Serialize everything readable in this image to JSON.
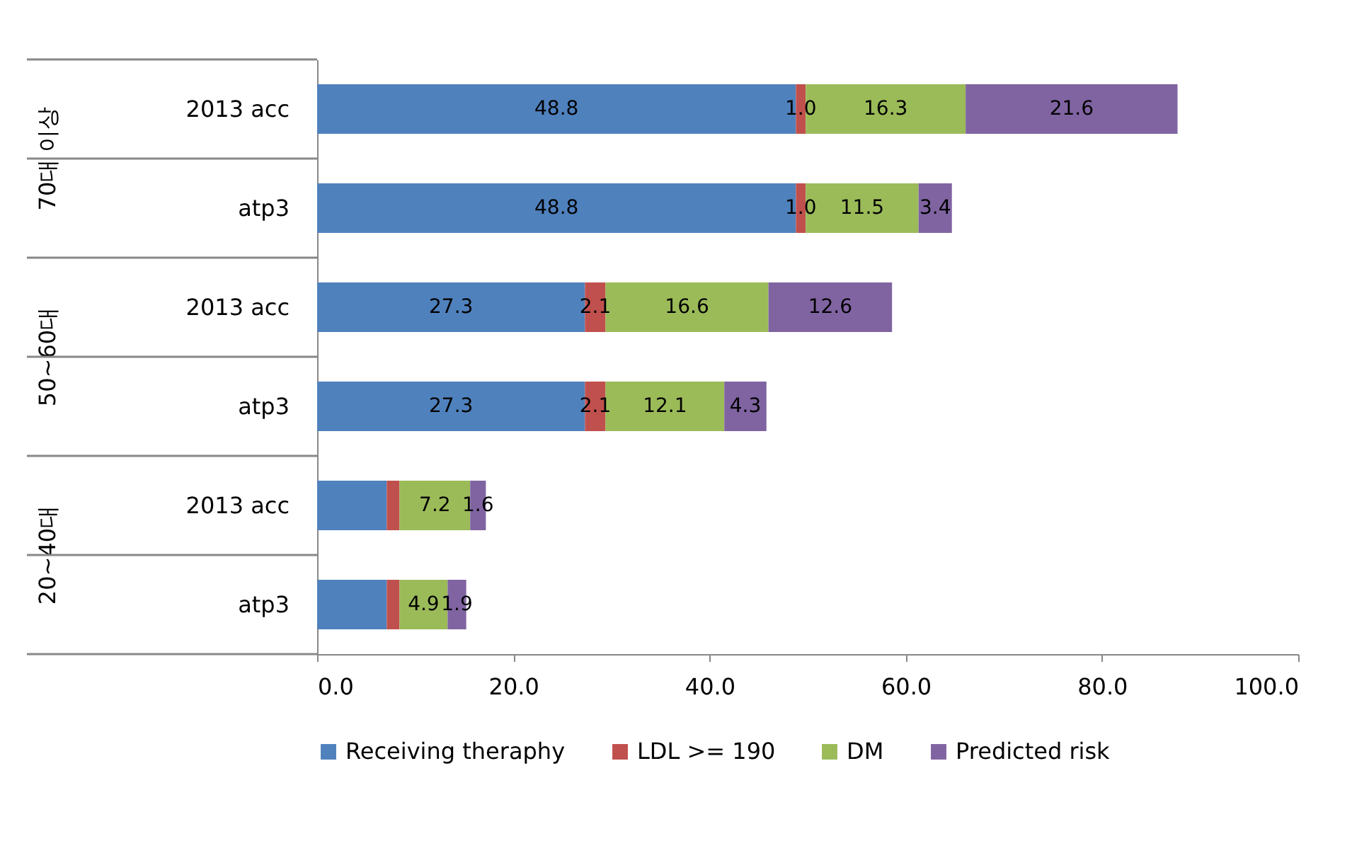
{
  "chart_data": {
    "type": "bar",
    "orientation": "horizontal",
    "stacked": true,
    "categories": [
      "2013 acc",
      "atp3",
      "2013 acc",
      "atp3",
      "2013 acc",
      "atp3"
    ],
    "annotations": [
      "70대 이상",
      "50~60대",
      "20~40대"
    ],
    "series": [
      {
        "name": "Receiving theraphy",
        "color": "#4f81bd",
        "values": [
          48.8,
          48.8,
          27.3,
          27.3,
          7.1,
          7.1
        ],
        "value_labels": [
          "48.8",
          "48.8",
          "27.3",
          "27.3",
          null,
          null
        ]
      },
      {
        "name": "LDL >= 190",
        "color": "#c0504d",
        "values": [
          1.0,
          1.0,
          2.1,
          2.1,
          1.3,
          1.3
        ],
        "value_labels": [
          "1.0",
          "1.0",
          "2.1",
          "2.1",
          null,
          null
        ]
      },
      {
        "name": "DM",
        "color": "#9bbb59",
        "values": [
          16.3,
          11.5,
          16.6,
          12.1,
          7.2,
          4.9
        ],
        "value_labels": [
          "16.3",
          "11.5",
          "16.6",
          "12.1",
          "7.2",
          "4.9"
        ]
      },
      {
        "name": "Predicted risk",
        "color": "#8064a2",
        "values": [
          21.6,
          3.4,
          12.6,
          4.3,
          1.6,
          1.9
        ],
        "value_labels": [
          "21.6",
          "3.4",
          "12.6",
          "4.3",
          "1.6",
          "1.9"
        ]
      }
    ],
    "xlim": [
      0,
      100
    ],
    "xticks": [
      {
        "value": 0,
        "label": "0.0"
      },
      {
        "value": 20,
        "label": "20.0"
      },
      {
        "value": 40,
        "label": "40.0"
      },
      {
        "value": 60,
        "label": "60.0"
      },
      {
        "value": 80,
        "label": "80.0"
      },
      {
        "value": 100,
        "label": "100.0"
      }
    ],
    "grid": false,
    "legend": "bottom"
  }
}
